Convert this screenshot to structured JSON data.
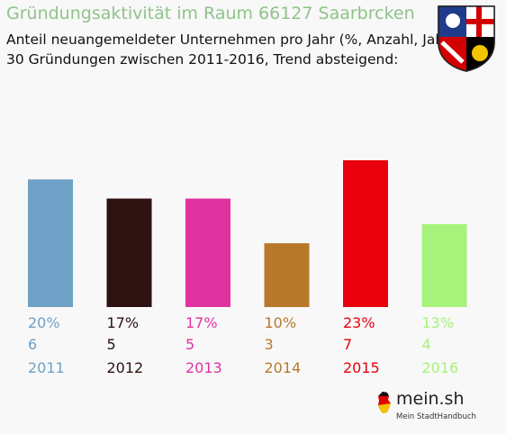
{
  "title": "Gründungsaktivität im Raum 66127 Saarbrcken",
  "subtitle_line1": "Anteil neuangemeldeter Unternehmen pro Jahr (%, Anzahl, Jahr)",
  "subtitle_line2": "30 Gründungen zwischen 2011-2016, Trend absteigend:",
  "logo": {
    "name": "mein.sh",
    "tagline": "Mein StadtHandbuch"
  },
  "crest_icon": "saarland-coat-of-arms-icon",
  "chart_data": {
    "type": "bar",
    "title": "Gründungsaktivität im Raum 66127 Saarbrcken",
    "categories": [
      "2011",
      "2012",
      "2013",
      "2014",
      "2015",
      "2016"
    ],
    "values": [
      20,
      17,
      17,
      10,
      23,
      13
    ],
    "percent_labels": [
      "20%",
      "17%",
      "17%",
      "10%",
      "23%",
      "13%"
    ],
    "count_labels": [
      "6",
      "5",
      "5",
      "3",
      "7",
      "4"
    ],
    "colors": [
      "#6fa0c5",
      "#2e1111",
      "#e0339f",
      "#b8782c",
      "#e8000d",
      "#a6f27a"
    ],
    "ylim": [
      0,
      23
    ],
    "grid": false,
    "legend": "none"
  }
}
